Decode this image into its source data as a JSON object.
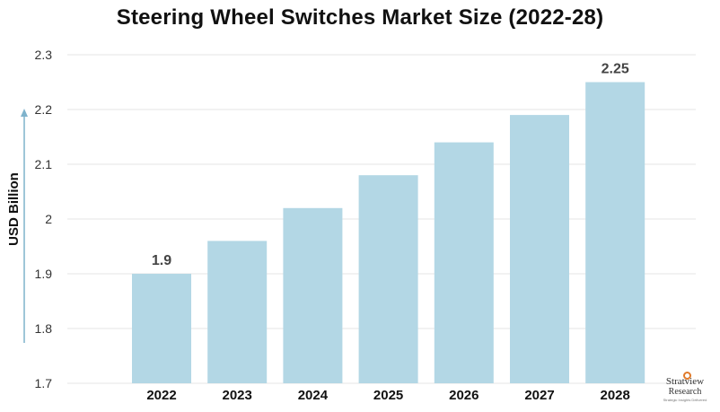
{
  "chart_data": {
    "type": "bar",
    "title": "Steering Wheel Switches Market Size (2022-28)",
    "ylabel": "USD Billion",
    "xlabel": "",
    "categories": [
      "2022",
      "2023",
      "2024",
      "2025",
      "2026",
      "2027",
      "2028"
    ],
    "values": [
      1.9,
      1.96,
      2.02,
      2.08,
      2.14,
      2.19,
      2.25
    ],
    "data_labels": [
      {
        "index": 0,
        "text": "1.9"
      },
      {
        "index": 6,
        "text": "2.25"
      }
    ],
    "ylim": [
      1.7,
      2.3
    ],
    "yticks": [
      "1.7",
      "1.8",
      "1.9",
      "2",
      "2.1",
      "2.2",
      "2.3"
    ],
    "grid": true,
    "legend": "none",
    "bar_color": "#b3d7e5",
    "grid_color": "#e6e6e6",
    "axis_arrow_color": "#7fb3cc"
  },
  "logo": {
    "brand_line1": "Stratview",
    "brand_line2": "Research",
    "tagline": "Strategic Insights Delivered"
  }
}
